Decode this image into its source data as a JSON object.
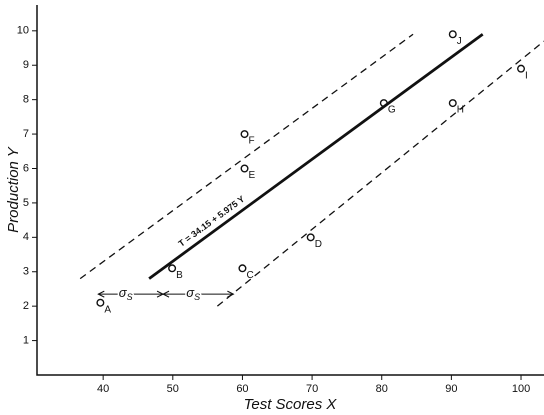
{
  "chart_data": {
    "type": "scatter",
    "xlabel": "Test Scores X",
    "ylabel": "Production Y",
    "xlim": [
      30.5,
      103.3
    ],
    "ylim": [
      0,
      10.75
    ],
    "xticks": [
      40,
      50,
      60,
      70,
      80,
      90,
      100
    ],
    "yticks": [
      1,
      2,
      3,
      4,
      5,
      6,
      7,
      8,
      9,
      10
    ],
    "x": [
      39.6,
      49.9,
      60,
      69.8,
      60.3,
      60.3,
      80.3,
      90.2,
      90.2,
      100
    ],
    "values": [
      2.1,
      3.1,
      3.1,
      4.0,
      6.0,
      7.0,
      7.9,
      7.9,
      9.9,
      8.9
    ],
    "point_labels": [
      "A",
      "B",
      "C",
      "D",
      "E",
      "F",
      "G",
      "H",
      "J",
      "I"
    ],
    "color": "#111",
    "lines": [
      {
        "x": [
          46.6,
          94.5
        ],
        "y": [
          2.8,
          9.9
        ],
        "dashed": false
      },
      {
        "x": [
          36.7,
          84.5
        ],
        "y": [
          2.8,
          9.9
        ],
        "dashed": true
      },
      {
        "x": [
          56.4,
          103.3
        ],
        "y": [
          2.0,
          9.7
        ],
        "dashed": true
      }
    ],
    "equation": "T = 34.15 + 5.975 Y",
    "sigma_arrows": [
      {
        "x": [
          39.3,
          48.6
        ],
        "y": 2.35,
        "text": "σ",
        "sub": "S"
      },
      {
        "x": [
          48.6,
          58.7
        ],
        "y": 2.35,
        "text": "σ",
        "sub": "S"
      }
    ]
  }
}
